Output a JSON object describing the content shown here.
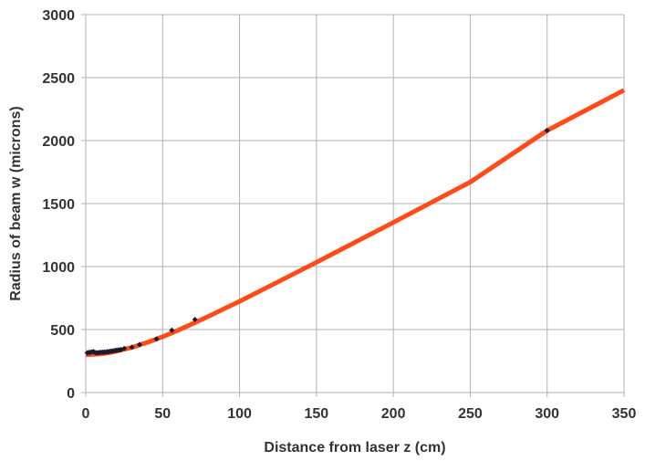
{
  "chart_data": {
    "type": "scatter",
    "title": "",
    "xlabel": "Distance from laser z (cm)",
    "ylabel": "Radius of beam w (microns)",
    "xlim": [
      0,
      350
    ],
    "ylim": [
      0,
      3000
    ],
    "x_ticks": [
      "0",
      "50",
      "100",
      "150",
      "200",
      "250",
      "300",
      "350"
    ],
    "y_ticks": [
      "0",
      "500",
      "1000",
      "1500",
      "2000",
      "2500",
      "3000"
    ],
    "grid": true,
    "legend": "none",
    "series": [
      {
        "kind": "points",
        "color": "#1a1a2e",
        "marker": "diamond",
        "x": [
          1,
          2,
          3,
          4,
          5,
          6,
          7,
          8,
          9,
          10,
          11,
          12,
          13,
          14,
          15,
          16,
          17,
          18,
          19,
          20,
          21,
          22,
          23,
          25,
          30,
          35,
          46,
          56,
          71,
          300
        ],
        "y": [
          315,
          318,
          320,
          322,
          325,
          318,
          315,
          316,
          318,
          319,
          320,
          321,
          322,
          323,
          325,
          327,
          329,
          331,
          333,
          335,
          337,
          339,
          341,
          350,
          360,
          380,
          425,
          495,
          580,
          2080
        ]
      },
      {
        "kind": "line",
        "color": "#ff4a1a",
        "x": [
          0,
          5,
          10,
          15,
          20,
          30,
          40,
          50,
          60,
          70,
          80,
          100,
          125,
          150,
          175,
          200,
          250,
          300,
          350
        ],
        "y": [
          300,
          302,
          307,
          316,
          328,
          358,
          398,
          443,
          494,
          549,
          606,
          724,
          878,
          1034,
          1192,
          1350,
          1670,
          2080,
          2400
        ]
      }
    ]
  }
}
